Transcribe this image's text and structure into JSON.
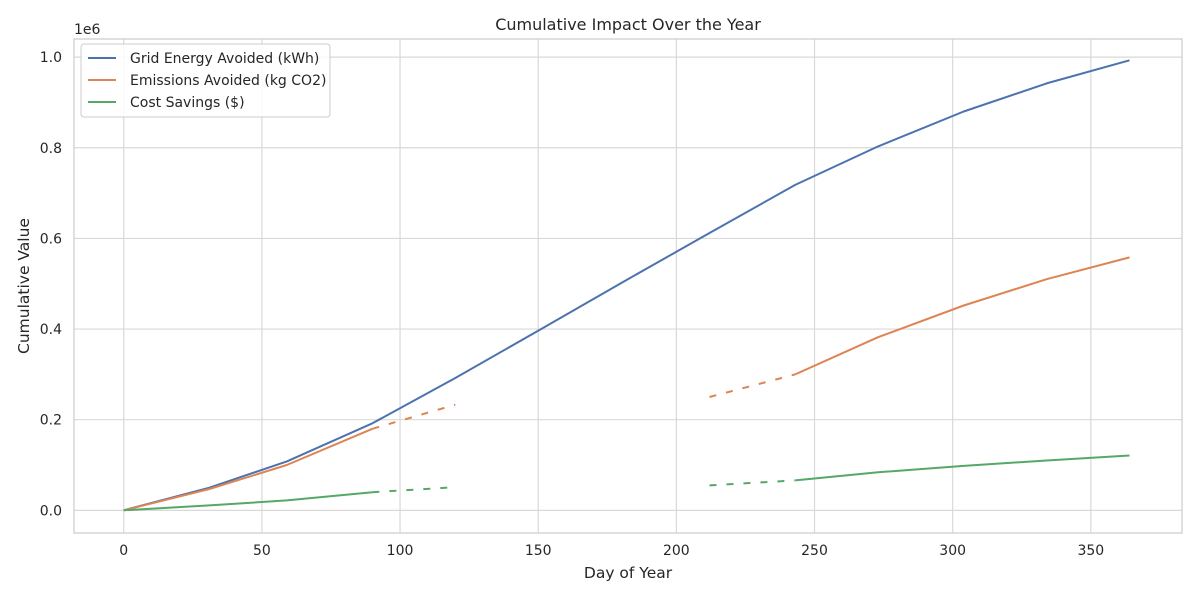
{
  "chart_data": {
    "type": "line",
    "title": "Cumulative Impact Over the Year",
    "xlabel": "Day of Year",
    "ylabel": "Cumulative Value",
    "y_offset_label": "1e6",
    "xlim": [
      -18,
      383
    ],
    "ylim": [
      -0.05,
      1.04
    ],
    "x_ticks": [
      0,
      50,
      100,
      150,
      200,
      250,
      300,
      350
    ],
    "y_ticks": [
      0.0,
      0.2,
      0.4,
      0.6,
      0.8,
      1.0
    ],
    "x_tick_labels": [
      "0",
      "50",
      "100",
      "150",
      "200",
      "250",
      "300",
      "350"
    ],
    "y_tick_labels": [
      "0.0",
      "0.2",
      "0.4",
      "0.6",
      "0.8",
      "1.0"
    ],
    "grid": true,
    "legend_position": "top-left",
    "series": [
      {
        "name": "Grid Energy Avoided (kWh)",
        "color": "#4c72b0",
        "style": "solid",
        "x": [
          0,
          31,
          59,
          90,
          120,
          151,
          181,
          212,
          243,
          273,
          304,
          334,
          364
        ],
        "y": [
          0.0,
          0.05,
          0.108,
          0.192,
          0.292,
          0.4,
          0.505,
          0.612,
          0.718,
          0.803,
          0.88,
          0.942,
          0.993
        ]
      },
      {
        "name": "Emissions Avoided (kg CO2)",
        "color": "#dd8452",
        "style": "solid",
        "x": [
          0,
          31,
          59,
          90
        ],
        "y": [
          0.0,
          0.047,
          0.1,
          0.18
        ]
      },
      {
        "color": "#dd8452",
        "style": "dashed",
        "x": [
          90,
          120
        ],
        "y": [
          0.18,
          0.233
        ]
      },
      {
        "color": "#dd8452",
        "style": "dashed",
        "x": [
          212,
          243
        ],
        "y": [
          0.25,
          0.3
        ]
      },
      {
        "color": "#dd8452",
        "style": "solid",
        "x": [
          243,
          273,
          304,
          334,
          364
        ],
        "y": [
          0.3,
          0.382,
          0.452,
          0.51,
          0.558
        ]
      },
      {
        "name": "Cost Savings ($)",
        "color": "#55a868",
        "style": "solid",
        "x": [
          0,
          31,
          59,
          90
        ],
        "y": [
          0.0,
          0.011,
          0.022,
          0.04
        ]
      },
      {
        "color": "#55a868",
        "style": "dashed",
        "x": [
          90,
          120
        ],
        "y": [
          0.04,
          0.051
        ]
      },
      {
        "color": "#55a868",
        "style": "dashed",
        "x": [
          212,
          243
        ],
        "y": [
          0.055,
          0.066
        ]
      },
      {
        "color": "#55a868",
        "style": "solid",
        "x": [
          243,
          273,
          304,
          334,
          364
        ],
        "y": [
          0.066,
          0.084,
          0.098,
          0.11,
          0.121
        ]
      }
    ]
  }
}
